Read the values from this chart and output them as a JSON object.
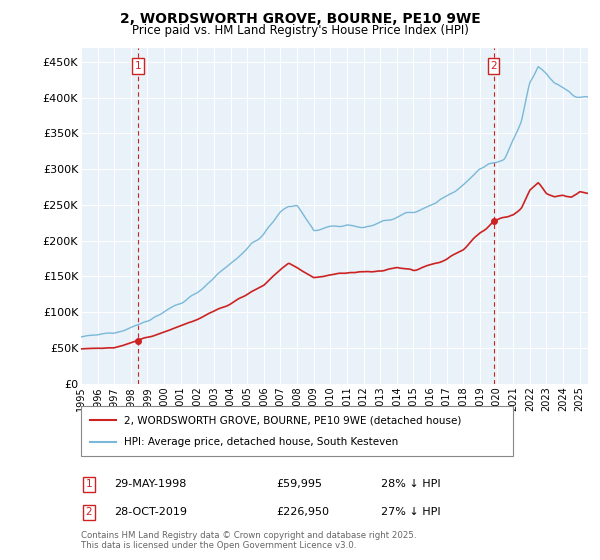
{
  "title": "2, WORDSWORTH GROVE, BOURNE, PE10 9WE",
  "subtitle": "Price paid vs. HM Land Registry's House Price Index (HPI)",
  "ylim": [
    0,
    470000
  ],
  "yticks": [
    0,
    50000,
    100000,
    150000,
    200000,
    250000,
    300000,
    350000,
    400000,
    450000
  ],
  "ytick_labels": [
    "£0",
    "£50K",
    "£100K",
    "£150K",
    "£200K",
    "£250K",
    "£300K",
    "£350K",
    "£400K",
    "£450K"
  ],
  "hpi_color": "#7ab8d9",
  "price_color": "#cc2222",
  "vline_color": "#cc2222",
  "background_color": "#ffffff",
  "plot_bg_color": "#e8f2f8",
  "grid_color": "#ffffff",
  "legend_label_price": "2, WORDSWORTH GROVE, BOURNE, PE10 9WE (detached house)",
  "legend_label_hpi": "HPI: Average price, detached house, South Kesteven",
  "sale1_label": "1",
  "sale1_date": "29-MAY-1998",
  "sale1_price": "£59,995",
  "sale1_hpi": "28% ↓ HPI",
  "sale1_year": 1998.41,
  "sale1_value": 59995,
  "sale2_label": "2",
  "sale2_date": "28-OCT-2019",
  "sale2_price": "£226,950",
  "sale2_hpi": "27% ↓ HPI",
  "sale2_year": 2019.82,
  "sale2_value": 226950,
  "copyright_text": "Contains HM Land Registry data © Crown copyright and database right 2025.\nThis data is licensed under the Open Government Licence v3.0.",
  "xmin": 1995,
  "xmax": 2025.5
}
